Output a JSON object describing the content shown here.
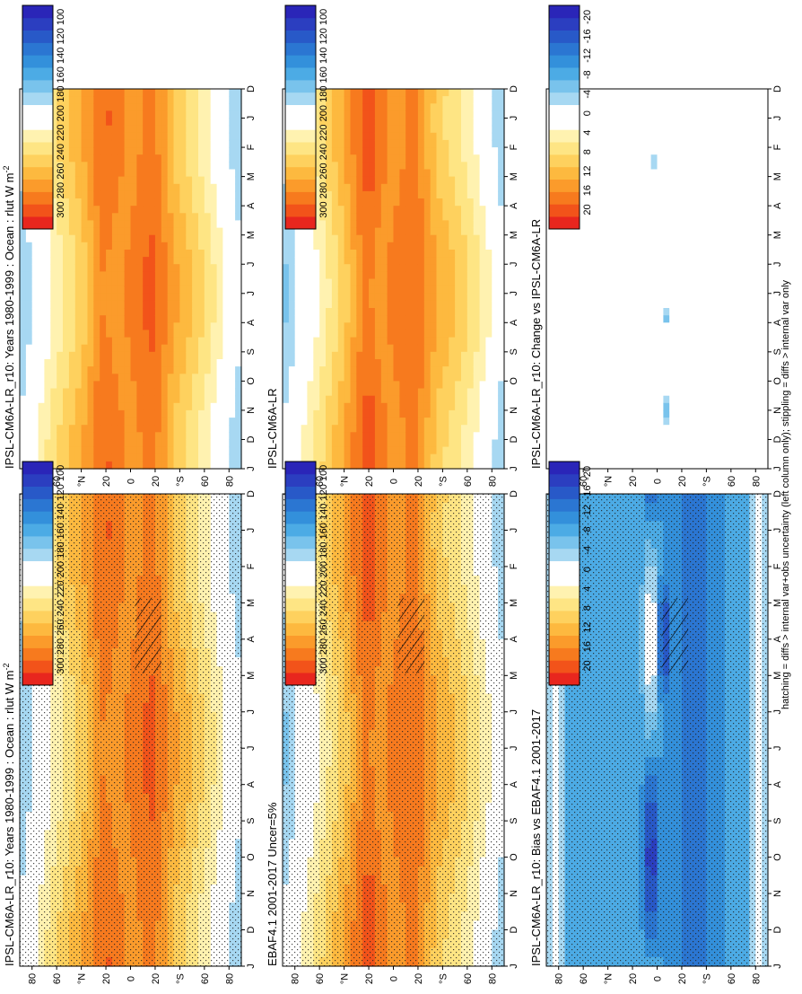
{
  "footnote": "hatching = diffs > internal var+obs uncertainty (left column only); stippling = diffs > internal var only",
  "lat_ticks": [
    "80",
    "60",
    "°N",
    "20",
    "0",
    "20",
    "°S",
    "60",
    "80"
  ],
  "month_ticks": [
    "D",
    "J",
    "F",
    "M",
    "A",
    "M",
    "J",
    "J",
    "A",
    "S",
    "O",
    "N",
    "D",
    "J"
  ],
  "colorbars": {
    "absolute": {
      "labels": [
        "300",
        "280",
        "260",
        "240",
        "220",
        "200",
        "180",
        "160",
        "140",
        "120",
        "100"
      ],
      "colors": [
        "#e8261e",
        "#f2531a",
        "#f77a1e",
        "#fb9b2b",
        "#fdb93f",
        "#fed15e",
        "#fee584",
        "#fff2b0",
        "#ffffff",
        "#ffffff",
        "#a7d8f2",
        "#79c3ec",
        "#4cabe5",
        "#3390db",
        "#2b76d2",
        "#2859c8",
        "#2b3ec0",
        "#2a25b8"
      ]
    },
    "difference": {
      "labels": [
        "20",
        "16",
        "12",
        "8",
        "4",
        "0",
        "-4",
        "-8",
        "-12",
        "-16",
        "-20"
      ],
      "colors": [
        "#e8261e",
        "#f2531a",
        "#f77a1e",
        "#fb9b2b",
        "#fdb93f",
        "#fed15e",
        "#fee584",
        "#fff2b0",
        "#ffffff",
        "#ffffff",
        "#a7d8f2",
        "#79c3ec",
        "#4cabe5",
        "#3390db",
        "#2b76d2",
        "#2859c8",
        "#2b3ec0",
        "#2a25b8"
      ]
    }
  },
  "chart_data": [
    {
      "type": "heatmap",
      "title": "IPSL-CM6A-LR_r10: Years 1980-1999 : Ocean : rlut W m",
      "title_superscript": "-2",
      "x": "month",
      "y": "latitude",
      "ylim": [
        -90,
        90
      ],
      "colorbar": "absolute",
      "stippled": true,
      "hatched": true
    },
    {
      "type": "heatmap",
      "title": "EBAF4.1 2001-2017 Uncer=5%",
      "x": "month",
      "y": "latitude",
      "ylim": [
        -90,
        90
      ],
      "colorbar": "absolute",
      "stippled": true,
      "hatched": true
    },
    {
      "type": "heatmap",
      "title": "IPSL-CM6A-LR_r10: Bias vs EBAF4.1 2001-2017",
      "x": "month",
      "y": "latitude",
      "ylim": [
        -90,
        90
      ],
      "colorbar": "difference",
      "stippled": true,
      "hatched": true
    },
    {
      "type": "heatmap",
      "title": "IPSL-CM6A-LR_r10: Years 1980-1999 : Ocean : rlut W m",
      "title_superscript": "-2",
      "x": "month",
      "y": "latitude",
      "ylim": [
        -90,
        90
      ],
      "colorbar": "absolute",
      "stippled": false,
      "hatched": false
    },
    {
      "type": "heatmap",
      "title": "IPSL-CM6A-LR",
      "x": "month",
      "y": "latitude",
      "ylim": [
        -90,
        90
      ],
      "colorbar": "absolute",
      "stippled": false,
      "hatched": false
    },
    {
      "type": "heatmap",
      "title": "IPSL-CM6A-LR_r10: Change vs IPSL-CM6A-LR",
      "x": "month",
      "y": "latitude",
      "ylim": [
        -90,
        90
      ],
      "colorbar": "difference",
      "stippled": false,
      "hatched": false
    }
  ]
}
